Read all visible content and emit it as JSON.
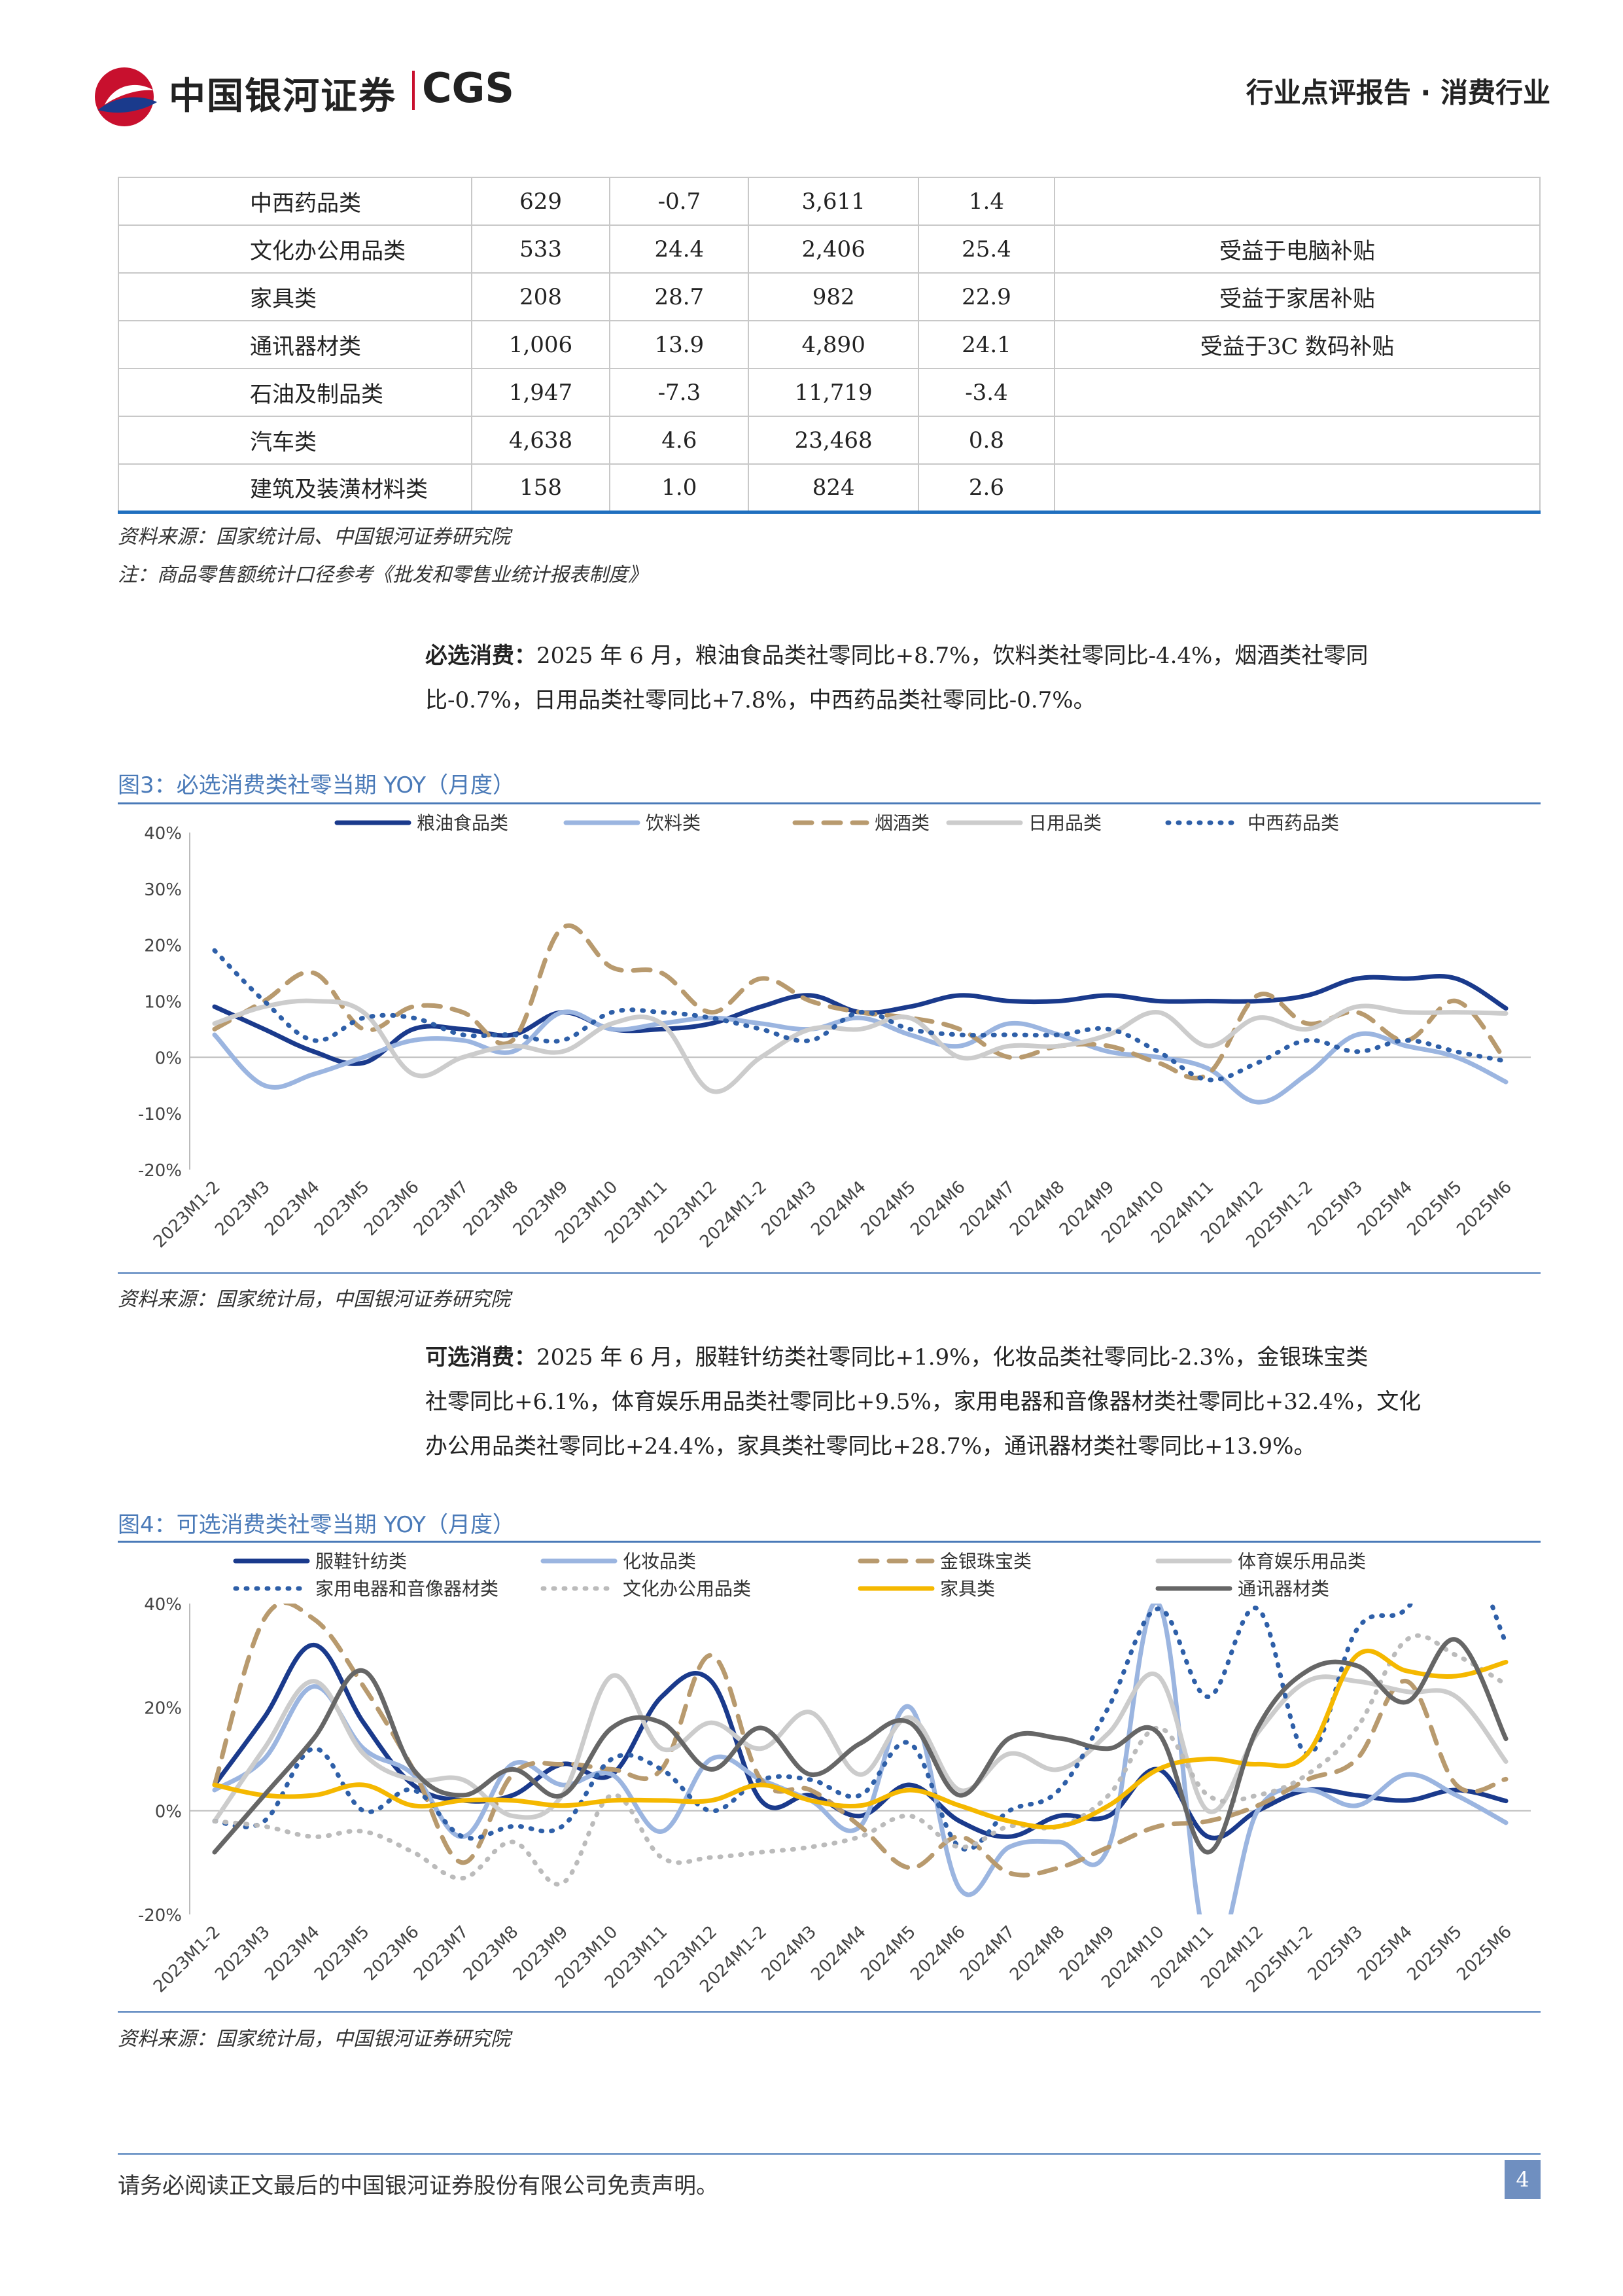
{
  "header": {
    "company_cn": "中国银河证券",
    "company_en": "CGS",
    "report_type": "行业点评报告 · 消费行业"
  },
  "table": {
    "rows": [
      [
        "中西药品类",
        "629",
        "-0.7",
        "3,611",
        "1.4",
        ""
      ],
      [
        "文化办公用品类",
        "533",
        "24.4",
        "2,406",
        "25.4",
        "受益于电脑补贴"
      ],
      [
        "家具类",
        "208",
        "28.7",
        "982",
        "22.9",
        "受益于家居补贴"
      ],
      [
        "通讯器材类",
        "1,006",
        "13.9",
        "4,890",
        "24.1",
        "受益于3C 数码补贴"
      ],
      [
        "石油及制品类",
        "1,947",
        "-7.3",
        "11,719",
        "-3.4",
        ""
      ],
      [
        "汽车类",
        "4,638",
        "4.6",
        "23,468",
        "0.8",
        ""
      ],
      [
        "建筑及装潢材料类",
        "158",
        "1.0",
        "824",
        "2.6",
        ""
      ]
    ],
    "source": "资料来源：国家统计局、中国银河证券研究院",
    "note": "注：商品零售额统计口径参考《批发和零售业统计报表制度》"
  },
  "para1": {
    "lead": "必选消费：",
    "line1": "2025 年 6 月，粮油食品类社零同比+8.7%，饮料类社零同比-4.4%，烟酒类社零同",
    "line2": "比-0.7%，日用品类社零同比+7.8%，中西药品类社零同比-0.7%。"
  },
  "para2": {
    "lead": "可选消费：",
    "line1": "2025 年 6 月，服鞋针纺类社零同比+1.9%，化妆品类社零同比-2.3%，金银珠宝类",
    "line2": "社零同比+6.1%，体育娱乐用品类社零同比+9.5%，家用电器和音像器材类社零同比+32.4%，文化",
    "line3": "办公用品类社零同比+24.4%，家具类社零同比+28.7%，通讯器材类社零同比+13.9%。"
  },
  "fig3": {
    "title": "图3：必选消费类社零当期 YOY（月度）",
    "source": "资料来源：国家统计局，中国银河证券研究院"
  },
  "fig4": {
    "title": "图4：可选消费类社零当期 YOY（月度）",
    "source": "资料来源：国家统计局，中国银河证券研究院"
  },
  "footer": {
    "disclaimer": "请务必阅读正文最后的中国银河证券股份有限公司免责声明。",
    "page": "4"
  },
  "chart_data": [
    {
      "type": "line",
      "title": "",
      "x": [
        "2023M1-2",
        "2023M3",
        "2023M4",
        "2023M5",
        "2023M6",
        "2023M7",
        "2023M8",
        "2023M9",
        "2023M10",
        "2023M11",
        "2023M12",
        "2024M1-2",
        "2024M3",
        "2024M4",
        "2024M5",
        "2024M6",
        "2024M7",
        "2024M8",
        "2024M9",
        "2024M10",
        "2024M11",
        "2024M12",
        "2025M1-2",
        "2025M3",
        "2025M4",
        "2025M5",
        "2025M6"
      ],
      "yticks": [
        "40%",
        "30%",
        "20%",
        "10%",
        "0%",
        "-10%",
        "-20%"
      ],
      "ylim": [
        -20,
        40
      ],
      "legend_position": "top",
      "series": [
        {
          "name": "粮油食品类",
          "color": "#1a3a8c",
          "dash": "solid",
          "values": [
            9,
            5,
            1,
            -1,
            5,
            5,
            4,
            8,
            5,
            5,
            6,
            9,
            11,
            8,
            9,
            11,
            10,
            10,
            11,
            10,
            10,
            10,
            11,
            14,
            14,
            14,
            8.7
          ]
        },
        {
          "name": "饮料类",
          "color": "#9bb5e0",
          "dash": "solid",
          "values": [
            4,
            -5,
            -3,
            0,
            3,
            3,
            1,
            8,
            5,
            6,
            7,
            6,
            5,
            7,
            4,
            2,
            6,
            4,
            1,
            0,
            -2,
            -8,
            -3,
            4,
            2,
            0,
            -4.4
          ]
        },
        {
          "name": "烟酒类",
          "color": "#b89a6e",
          "dash": "dash",
          "values": [
            5,
            10,
            15,
            5,
            9,
            8,
            3,
            23,
            16,
            15,
            8,
            14,
            10,
            8,
            7,
            5,
            0,
            2,
            2,
            -1,
            -3,
            11,
            6,
            8,
            3,
            10,
            -0.7
          ]
        },
        {
          "name": "日用品类",
          "color": "#cccccc",
          "dash": "solid",
          "values": [
            6,
            9,
            10,
            8,
            -3,
            0,
            2,
            1,
            6,
            6,
            -6,
            0,
            5,
            5,
            7,
            0,
            2,
            2,
            4,
            8,
            2,
            7,
            5,
            9,
            8,
            8,
            7.8
          ]
        },
        {
          "name": "中西药品类",
          "color": "#2e5fa8",
          "dash": "dot",
          "values": [
            19,
            10,
            3,
            7,
            7,
            4,
            4,
            3,
            8,
            8,
            7,
            5,
            3,
            8,
            5,
            4,
            4,
            4,
            5,
            1,
            -4,
            -1,
            3,
            1,
            3,
            1,
            -0.7
          ]
        }
      ]
    },
    {
      "type": "line",
      "title": "",
      "x": [
        "2023M1-2",
        "2023M3",
        "2023M4",
        "2023M5",
        "2023M6",
        "2023M7",
        "2023M8",
        "2023M9",
        "2023M10",
        "2023M11",
        "2023M12",
        "2024M1-2",
        "2024M3",
        "2024M4",
        "2024M5",
        "2024M6",
        "2024M7",
        "2024M8",
        "2024M9",
        "2024M10",
        "2024M11",
        "2024M12",
        "2025M1-2",
        "2025M3",
        "2025M4",
        "2025M5",
        "2025M6"
      ],
      "yticks": [
        "40%",
        "20%",
        "0%",
        "-20%"
      ],
      "ylim": [
        -20,
        40
      ],
      "legend_position": "top",
      "series": [
        {
          "name": "服鞋针纺类",
          "color": "#1a3a8c",
          "dash": "solid",
          "values": [
            5,
            18,
            32,
            17,
            5,
            2,
            3,
            9,
            7,
            22,
            25,
            2,
            3,
            -1,
            5,
            -2,
            -5,
            -1,
            -1,
            8,
            -5,
            0,
            4,
            3,
            2,
            4,
            1.9
          ]
        },
        {
          "name": "化妆品类",
          "color": "#9bb5e0",
          "dash": "solid",
          "values": [
            4,
            10,
            24,
            12,
            7,
            -5,
            9,
            5,
            7,
            -4,
            10,
            6,
            2,
            -3,
            20,
            -15,
            -7,
            -6,
            -7,
            40,
            -27,
            0,
            4,
            1,
            7,
            3,
            -2.3
          ]
        },
        {
          "name": "金银珠宝类",
          "color": "#b89a6e",
          "dash": "dash",
          "values": [
            5,
            37,
            37,
            24,
            8,
            -10,
            7,
            9,
            8,
            8,
            30,
            6,
            4,
            -3,
            -11,
            -5,
            -12,
            -11,
            -7,
            -3,
            -2,
            1,
            6,
            10,
            25,
            5,
            6.1
          ]
        },
        {
          "name": "体育娱乐用品类",
          "color": "#cccccc",
          "dash": "solid",
          "values": [
            -2,
            12,
            25,
            11,
            6,
            6,
            -1,
            3,
            26,
            12,
            17,
            12,
            19,
            7,
            18,
            4,
            11,
            8,
            15,
            26,
            0,
            15,
            25,
            25,
            23,
            22,
            9.5
          ]
        },
        {
          "name": "家用电器和音像器材类",
          "color": "#2e5fa8",
          "dash": "dot",
          "values": [
            -2,
            -2,
            12,
            0,
            4,
            -5,
            -3,
            -3,
            10,
            8,
            0,
            6,
            6,
            3,
            13,
            -7,
            0,
            4,
            20,
            39,
            22,
            39,
            11,
            35,
            39,
            53,
            32.4
          ]
        },
        {
          "name": "文化办公用品类",
          "color": "#bbbbbb",
          "dash": "dot",
          "values": [
            -2,
            -3,
            -5,
            -4,
            -8,
            -13,
            -6,
            -14,
            3,
            -9,
            -9,
            -8,
            -7,
            -5,
            -1,
            -7,
            -3,
            -3,
            3,
            16,
            3,
            3,
            7,
            16,
            33,
            30,
            24.4
          ]
        },
        {
          "name": "家具类",
          "color": "#f5b800",
          "dash": "solid",
          "values": [
            5,
            3,
            3,
            5,
            1,
            2,
            2,
            1,
            2,
            2,
            2,
            5,
            2,
            1,
            4,
            1,
            -2,
            -3,
            1,
            8,
            10,
            9,
            11,
            30,
            27,
            26,
            28.7
          ]
        },
        {
          "name": "通讯器材类",
          "color": "#666666",
          "dash": "solid",
          "values": [
            -8,
            3,
            14,
            27,
            8,
            3,
            8,
            3,
            16,
            17,
            8,
            16,
            7,
            13,
            17,
            3,
            14,
            14,
            12,
            15,
            -8,
            16,
            27,
            28,
            21,
            33,
            13.9
          ]
        }
      ]
    }
  ]
}
